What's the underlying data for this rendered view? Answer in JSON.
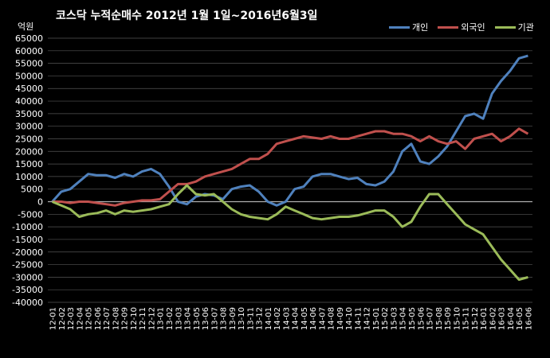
{
  "chart_data": {
    "type": "line",
    "title": "코스닥  누적순매수 2012년 1월 1일~2016년6월3일",
    "ylabel": "억원",
    "ylim": [
      -40000,
      65000
    ],
    "yticks": [
      65000,
      60000,
      55000,
      50000,
      45000,
      40000,
      35000,
      30000,
      25000,
      20000,
      15000,
      10000,
      5000,
      0,
      -5000,
      -10000,
      -15000,
      -20000,
      -25000,
      -30000,
      -35000,
      -40000
    ],
    "categories": [
      "12-01",
      "12-02",
      "12-03",
      "12-04",
      "12-05",
      "12-06",
      "12-07",
      "12-08",
      "12-09",
      "12-10",
      "12-11",
      "12-12",
      "13-01",
      "13-02",
      "13-03",
      "13-04",
      "13-05",
      "13-06",
      "13-07",
      "13-08",
      "13-09",
      "13-10",
      "13-11",
      "13-12",
      "14-01",
      "14-02",
      "14-03",
      "14-04",
      "14-05",
      "14-06",
      "14-07",
      "14-08",
      "14-09",
      "14-10",
      "14-11",
      "14-12",
      "15-01",
      "15-02",
      "15-03",
      "15-04",
      "15-05",
      "15-06",
      "15-07",
      "15-08",
      "15-09",
      "15-10",
      "15-11",
      "15-12",
      "16-01",
      "16-02",
      "16-03",
      "16-04",
      "16-05",
      "16-06"
    ],
    "grid": true,
    "legend_position": "top-right",
    "series": [
      {
        "name": "개인",
        "color": "#4f81bd",
        "values": [
          0,
          4000,
          5000,
          8000,
          11000,
          10500,
          10500,
          9500,
          11000,
          10000,
          12000,
          13000,
          11000,
          6000,
          0,
          -1000,
          2000,
          3000,
          2500,
          1000,
          5000,
          6000,
          6500,
          4000,
          0,
          -1500,
          0,
          5000,
          6000,
          10000,
          11000,
          11000,
          10000,
          9000,
          9500,
          7000,
          6500,
          8000,
          12000,
          20000,
          23000,
          16000,
          15000,
          18000,
          22000,
          28000,
          34000,
          35000,
          33000,
          43000,
          48000,
          52000,
          57000,
          58000
        ]
      },
      {
        "name": "외국인",
        "color": "#c0504d",
        "values": [
          0,
          0,
          -500,
          0,
          0,
          -500,
          -1000,
          -1500,
          -500,
          0,
          500,
          500,
          1000,
          4000,
          7000,
          7000,
          8000,
          10000,
          11000,
          12000,
          13000,
          15000,
          17000,
          17000,
          19000,
          23000,
          24000,
          25000,
          26000,
          25500,
          25000,
          26000,
          25000,
          25000,
          26000,
          27000,
          28000,
          28000,
          27000,
          27000,
          26000,
          24000,
          26000,
          24000,
          23000,
          24000,
          21000,
          25000,
          26000,
          27000,
          24000,
          26000,
          29000,
          27000
        ]
      },
      {
        "name": "기관",
        "color": "#9bbb59",
        "values": [
          0,
          -1500,
          -3000,
          -6000,
          -5000,
          -4500,
          -3500,
          -5000,
          -3500,
          -4000,
          -3500,
          -3000,
          -2000,
          -1000,
          3000,
          6500,
          3000,
          2500,
          3000,
          0,
          -3000,
          -5000,
          -6000,
          -6500,
          -7000,
          -5000,
          -2000,
          -3500,
          -5000,
          -6500,
          -7000,
          -6500,
          -6000,
          -6000,
          -5500,
          -4500,
          -3500,
          -3500,
          -6000,
          -10000,
          -8000,
          -2000,
          3000,
          3000,
          -1000,
          -5000,
          -9000,
          -11000,
          -13000,
          -18000,
          -23000,
          -27000,
          -31000,
          -30000
        ]
      }
    ]
  }
}
